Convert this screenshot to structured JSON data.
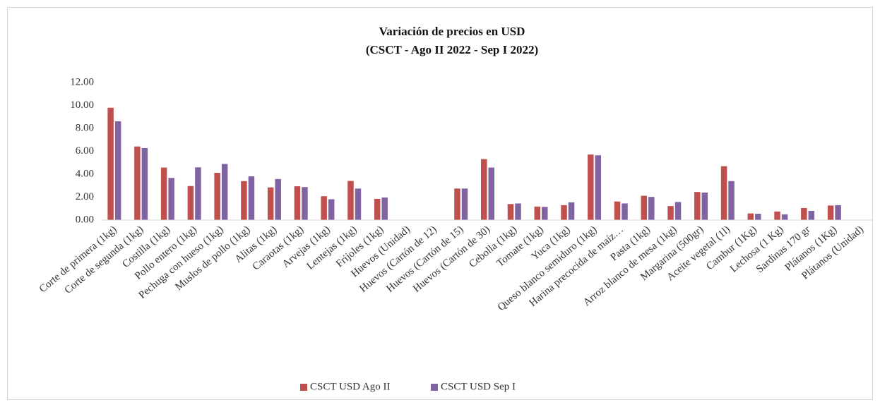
{
  "chart_data": {
    "type": "bar",
    "title": "Variación de precios en USD",
    "subtitle": "(CSCT - Ago II 2022 - Sep I 2022)",
    "categories": [
      "Corte de primera (1kg)",
      "Corte de segunda (1kg)",
      "Costilla (1kg)",
      "Pollo entero (1kg)",
      "Pechuga con hueso (1kg)",
      "Muslos de pollo (1kg)",
      "Alitas (1kg)",
      "Caraotas (1kg)",
      "Arvejas (1kg)",
      "Lentejas (1kg)",
      "Frijoles (1kg)",
      "Huevos (Unidad)",
      "Huevos (Cartón de 12)",
      "Huevos (Cartón de 15)",
      "Huevos (Cartón de 30)",
      "Cebolla (1kg)",
      "Tomate (1kg)",
      "Yuca (1kg)",
      "Queso blanco semiduro (1kg)",
      "Harina precocida de maíz…",
      "Pasta (1kg)",
      "Arroz blanco de mesa (1kg)",
      "Margarina (500gr)",
      "Aceite vegetal (1l)",
      "Cambur (1Kg)",
      "Lechosa (1 Kg)",
      "Sardinas 170 gr",
      "Plátanos (1Kg)",
      "Plátanos (Unidad)"
    ],
    "series": [
      {
        "name": "CSCT USD Ago II",
        "color": "#c0504d",
        "values": [
          9.8,
          6.42,
          4.58,
          2.97,
          4.12,
          3.4,
          2.85,
          2.95,
          2.08,
          3.42,
          1.85,
          null,
          null,
          2.75,
          5.32,
          1.4,
          1.18,
          1.3,
          5.72,
          1.62,
          2.12,
          1.22,
          2.45,
          4.7,
          0.58,
          0.75,
          1.05,
          1.27,
          null
        ]
      },
      {
        "name": "CSCT USD Sep I",
        "color": "#8064a2",
        "values": [
          8.62,
          6.28,
          3.68,
          4.6,
          4.9,
          3.82,
          3.58,
          2.88,
          1.82,
          2.75,
          1.97,
          null,
          null,
          2.75,
          4.58,
          1.45,
          1.15,
          1.55,
          5.65,
          1.45,
          2.02,
          1.58,
          2.4,
          3.4,
          0.55,
          0.5,
          0.8,
          1.3,
          null
        ]
      }
    ],
    "ylim": [
      0,
      12
    ],
    "yticks": [
      {
        "value": 0,
        "label": "0.00"
      },
      {
        "value": 2,
        "label": "2.00"
      },
      {
        "value": 4,
        "label": "4.00"
      },
      {
        "value": 6,
        "label": "6.00"
      },
      {
        "value": 8,
        "label": "8.00"
      },
      {
        "value": 10,
        "label": "10.00"
      },
      {
        "value": 12,
        "label": "12.00"
      }
    ],
    "grid": false,
    "legend": "bottom"
  }
}
